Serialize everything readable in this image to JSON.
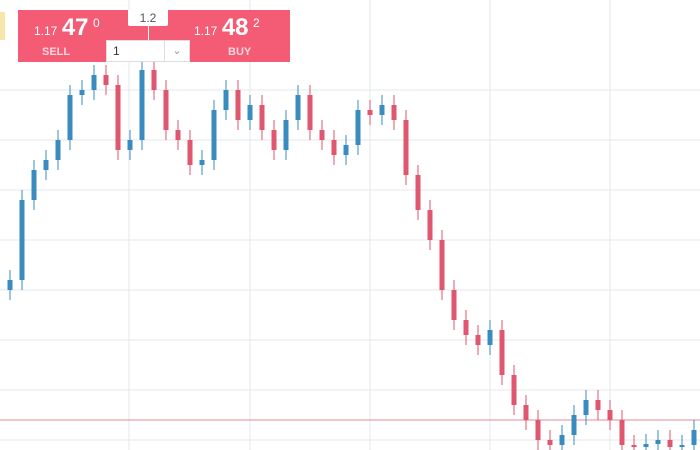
{
  "trade_widget": {
    "sell": {
      "prefix": "1.17",
      "big": "47",
      "sup": "0",
      "label": "SELL"
    },
    "buy": {
      "prefix": "1.17",
      "big": "48",
      "sup": "2",
      "label": "BUY"
    },
    "spread": "1.2",
    "amount": "1"
  },
  "chart_data": {
    "type": "candlestick",
    "open": [
      160,
      170,
      250,
      280,
      290,
      310,
      355,
      360,
      375,
      365,
      300,
      310,
      380,
      360,
      320,
      310,
      285,
      290,
      340,
      360,
      330,
      345,
      320,
      300,
      330,
      355,
      320,
      310,
      295,
      305,
      340,
      335,
      345,
      330,
      275,
      240,
      210,
      160,
      130,
      115,
      105,
      120,
      75,
      45,
      30,
      10,
      5,
      15,
      35,
      50,
      40,
      30,
      5,
      3,
      6,
      10,
      3,
      5
    ],
    "high": [
      180,
      260,
      290,
      300,
      320,
      365,
      370,
      385,
      385,
      375,
      320,
      390,
      390,
      370,
      330,
      320,
      300,
      350,
      370,
      370,
      355,
      355,
      330,
      340,
      365,
      365,
      330,
      320,
      315,
      350,
      350,
      355,
      355,
      340,
      285,
      250,
      220,
      170,
      140,
      125,
      130,
      130,
      85,
      55,
      40,
      20,
      25,
      45,
      60,
      60,
      50,
      40,
      15,
      16,
      20,
      20,
      15,
      30
    ],
    "low": [
      150,
      160,
      240,
      270,
      280,
      300,
      345,
      350,
      355,
      290,
      290,
      300,
      350,
      310,
      300,
      275,
      275,
      280,
      330,
      320,
      320,
      310,
      290,
      290,
      320,
      310,
      300,
      285,
      285,
      295,
      325,
      325,
      320,
      265,
      230,
      200,
      150,
      120,
      105,
      95,
      95,
      65,
      35,
      20,
      0,
      -5,
      -5,
      5,
      25,
      30,
      20,
      -5,
      -7,
      -7,
      -4,
      -7,
      -7,
      -5
    ],
    "close": [
      170,
      250,
      280,
      290,
      310,
      355,
      360,
      375,
      365,
      300,
      310,
      380,
      360,
      320,
      310,
      285,
      290,
      340,
      360,
      330,
      345,
      320,
      300,
      330,
      355,
      320,
      310,
      295,
      305,
      340,
      335,
      345,
      330,
      275,
      240,
      210,
      160,
      130,
      115,
      105,
      120,
      75,
      45,
      30,
      10,
      5,
      15,
      35,
      50,
      40,
      30,
      5,
      3,
      6,
      10,
      3,
      5,
      20
    ],
    "ylim": [
      0,
      450
    ],
    "up_color": "#3a8bbf",
    "down_color": "#e0566e"
  }
}
